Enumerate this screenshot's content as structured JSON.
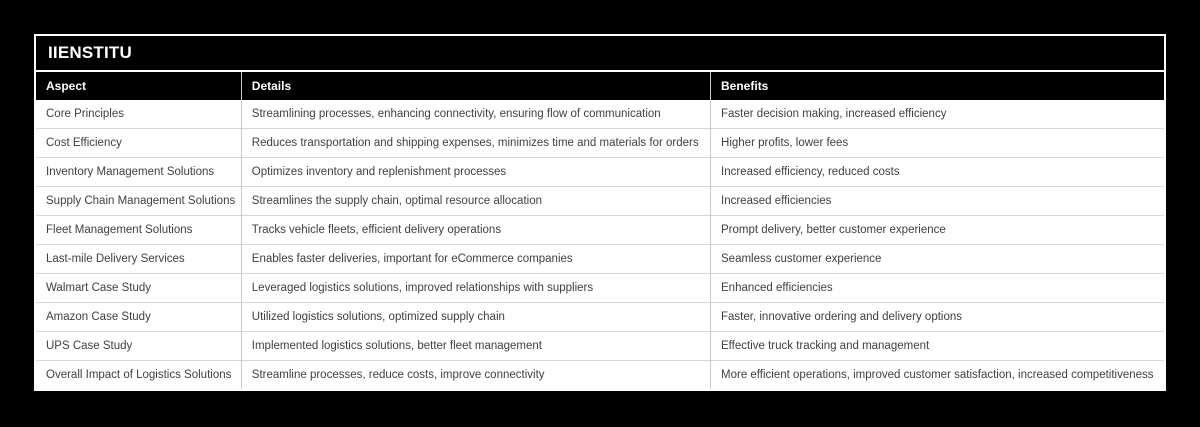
{
  "title": "IIENSTITU",
  "chart_data": {
    "type": "table",
    "title": "IIENSTITU",
    "columns": [
      "Aspect",
      "Details",
      "Benefits"
    ],
    "rows": [
      [
        "Core Principles",
        "Streamlining processes, enhancing connectivity, ensuring flow of communication",
        "Faster decision making, increased efficiency"
      ],
      [
        "Cost Efficiency",
        "Reduces transportation and shipping expenses, minimizes time and materials for orders",
        "Higher profits, lower fees"
      ],
      [
        "Inventory Management Solutions",
        "Optimizes inventory and replenishment processes",
        "Increased efficiency, reduced costs"
      ],
      [
        "Supply Chain Management Solutions",
        "Streamlines the supply chain, optimal resource allocation",
        "Increased efficiencies"
      ],
      [
        "Fleet Management Solutions",
        "Tracks vehicle fleets, efficient delivery operations",
        "Prompt delivery, better customer experience"
      ],
      [
        "Last-mile Delivery Services",
        "Enables faster deliveries, important for eCommerce companies",
        "Seamless customer experience"
      ],
      [
        "Walmart Case Study",
        "Leveraged logistics solutions, improved relationships with suppliers",
        "Enhanced efficiencies"
      ],
      [
        "Amazon Case Study",
        "Utilized logistics solutions, optimized supply chain",
        "Faster, innovative ordering and delivery options"
      ],
      [
        "UPS Case Study",
        "Implemented logistics solutions, better fleet management",
        "Effective truck tracking and management"
      ],
      [
        "Overall Impact of Logistics Solutions",
        "Streamline processes, reduce costs, improve connectivity",
        "More efficient operations, improved customer satisfaction, increased competitiveness"
      ]
    ]
  },
  "colors": {
    "page_background": "#000000",
    "card_border": "#ffffff",
    "title_background": "#000000",
    "title_text": "#ffffff",
    "header_background": "#000000",
    "header_text": "#ffffff",
    "body_background": "#ffffff",
    "body_text": "#404040",
    "grid_line": "#d6d6d6"
  }
}
